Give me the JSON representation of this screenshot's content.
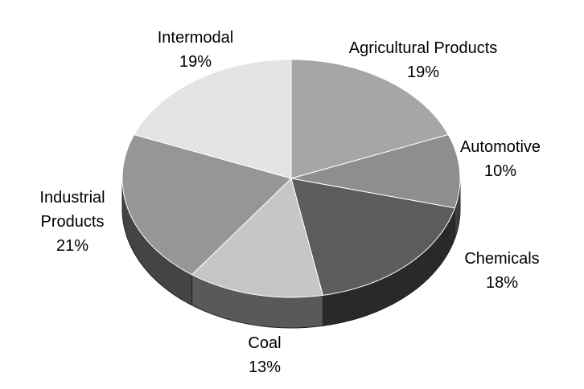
{
  "chart_data": {
    "type": "pie",
    "categories": [
      "Agricultural Products",
      "Automotive",
      "Chemicals",
      "Coal",
      "Industrial Products",
      "Intermodal"
    ],
    "values": [
      19,
      10,
      18,
      13,
      21,
      19
    ],
    "value_labels": [
      "19%",
      "10%",
      "18%",
      "13%",
      "21%",
      "19%"
    ],
    "colors": [
      "#a6a6a6",
      "#8e8e8e",
      "#5c5c5c",
      "#c6c6c6",
      "#969696",
      "#e4e4e4"
    ]
  }
}
